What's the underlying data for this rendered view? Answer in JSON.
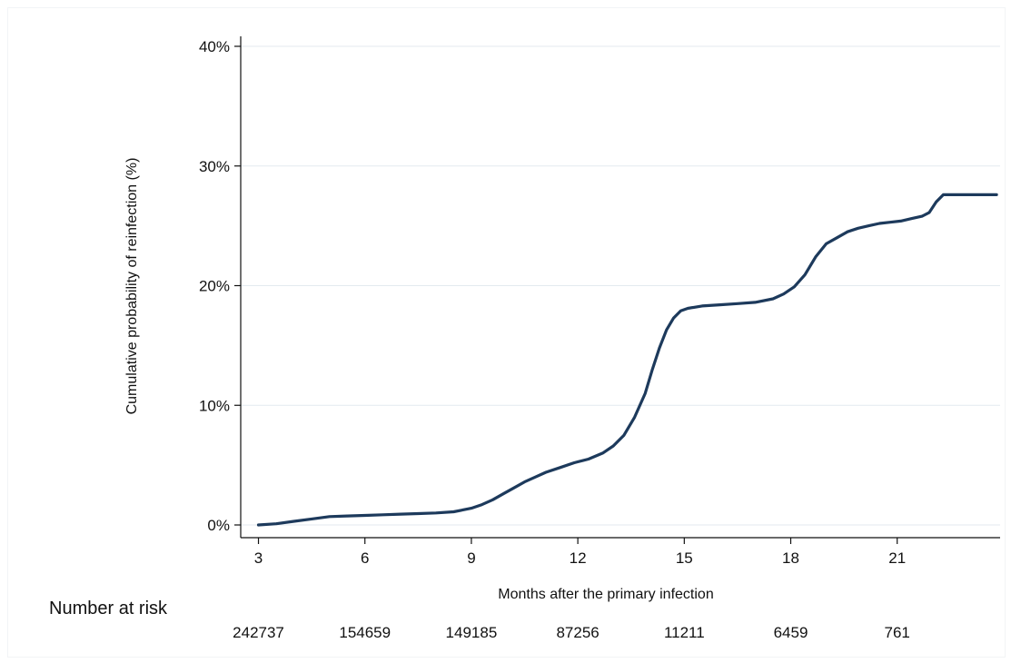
{
  "chart_data": {
    "type": "line",
    "title": "",
    "xlabel": "Months after the primary infection",
    "ylabel": "Cumulative probability of reinfection (%)",
    "xlim": [
      2.5,
      23.9
    ],
    "ylim": [
      0,
      40
    ],
    "x_ticks": [
      3,
      6,
      9,
      12,
      15,
      18,
      21
    ],
    "x_tick_labels": [
      "3",
      "6",
      "9",
      "12",
      "15",
      "18",
      "21"
    ],
    "y_ticks": [
      0,
      10,
      20,
      30,
      40
    ],
    "y_tick_labels": [
      "0%",
      "10%",
      "20%",
      "30%",
      "40%"
    ],
    "grid": "horizontal",
    "line_color": "#1d3a5c",
    "series": [
      {
        "name": "",
        "x": [
          3,
          3.5,
          4,
          4.5,
          5,
          5.5,
          6,
          6.5,
          7,
          7.5,
          8,
          8.5,
          9,
          9.3,
          9.6,
          9.9,
          10.2,
          10.5,
          10.8,
          11.1,
          11.5,
          11.9,
          12.3,
          12.7,
          13,
          13.3,
          13.6,
          13.9,
          14.1,
          14.3,
          14.5,
          14.7,
          14.9,
          15.1,
          15.5,
          16,
          16.5,
          17,
          17.5,
          17.8,
          18.1,
          18.4,
          18.7,
          19,
          19.3,
          19.6,
          19.9,
          20.2,
          20.5,
          20.8,
          21.1,
          21.4,
          21.7,
          21.9,
          22.1,
          22.3,
          22.6,
          22.9,
          23.2,
          23.5,
          23.8
        ],
        "y": [
          0,
          0.1,
          0.3,
          0.5,
          0.7,
          0.75,
          0.8,
          0.85,
          0.9,
          0.95,
          1.0,
          1.1,
          1.4,
          1.7,
          2.1,
          2.6,
          3.1,
          3.6,
          4.0,
          4.4,
          4.8,
          5.2,
          5.5,
          6.0,
          6.6,
          7.5,
          9.0,
          11.0,
          13.0,
          14.8,
          16.3,
          17.3,
          17.9,
          18.1,
          18.3,
          18.4,
          18.5,
          18.6,
          18.9,
          19.3,
          19.9,
          20.9,
          22.4,
          23.5,
          24.0,
          24.5,
          24.8,
          25.0,
          25.2,
          25.3,
          25.4,
          25.6,
          25.8,
          26.1,
          27.0,
          27.6,
          27.6,
          27.6,
          27.6,
          27.6,
          27.6
        ]
      }
    ]
  },
  "risk_table": {
    "title": "Number at risk",
    "values": [
      "242737",
      "154659",
      "149185",
      "87256",
      "11211",
      "6459",
      "761"
    ]
  }
}
